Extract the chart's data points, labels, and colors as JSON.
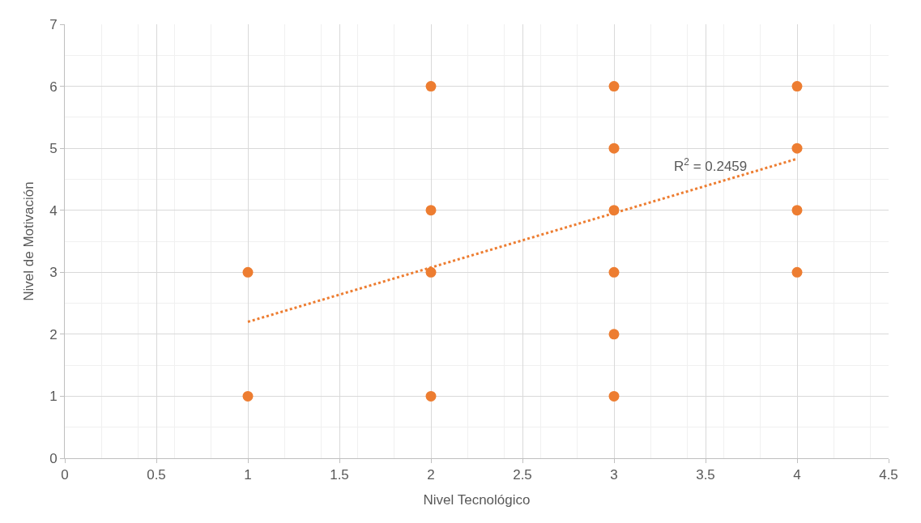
{
  "chart_data": {
    "type": "scatter",
    "xlabel": "Nivel Tecnológico",
    "ylabel": "Nivel de Motivación",
    "x": [
      1,
      1,
      2,
      2,
      2,
      2,
      3,
      3,
      3,
      3,
      3,
      3,
      4,
      4,
      4,
      4
    ],
    "series": [
      {
        "color": "#ed7d31",
        "marker": "circle",
        "values": [
          3,
          1,
          6,
          4,
          3,
          1,
          6,
          5,
          4,
          3,
          2,
          1,
          6,
          5,
          4,
          3
        ]
      },
      {
        "type": "line",
        "color": "#ed7d31",
        "line_style": "dotted",
        "x": [
          1,
          4
        ],
        "values": [
          2.2,
          4.83
        ]
      }
    ],
    "xlim": [
      0,
      4.5
    ],
    "xticks": [
      0,
      0.5,
      1,
      1.5,
      2,
      2.5,
      3,
      3.5,
      4,
      4.5
    ],
    "ylim": [
      0,
      7
    ],
    "yticks": [
      0,
      1,
      2,
      3,
      4,
      5,
      6,
      7
    ],
    "grid": true,
    "legend": false,
    "annotations": [
      "R$^{2}$ = 0.2459"
    ]
  }
}
